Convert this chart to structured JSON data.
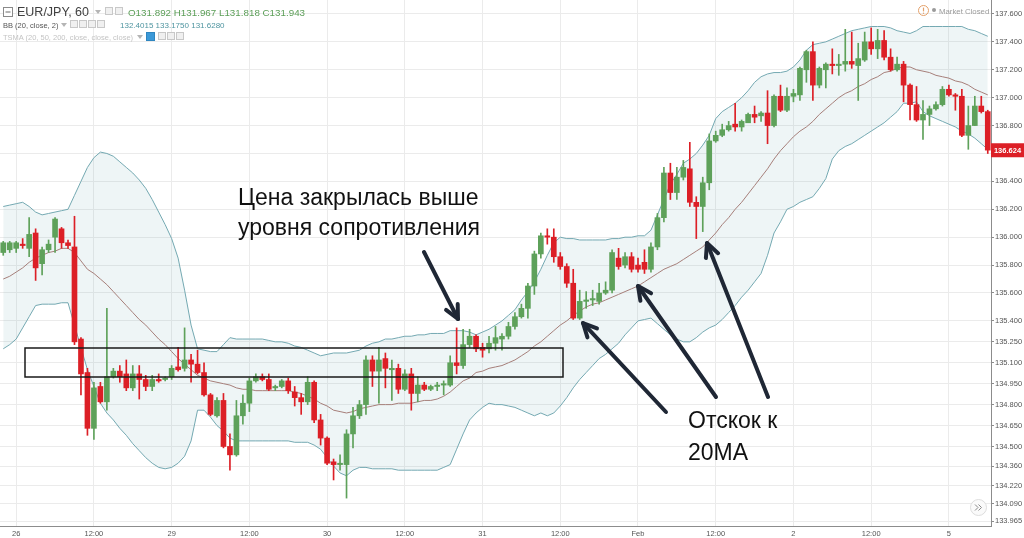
{
  "chart_data": {
    "type": "candlestick",
    "title": "EUR/JPY, 60",
    "categories": [
      null,
      null,
      "26",
      null,
      null,
      null,
      null,
      null,
      null,
      null,
      null,
      null,
      null,
      null,
      "12:00",
      null,
      null,
      null,
      null,
      null,
      null,
      null,
      null,
      null,
      null,
      null,
      "29",
      null,
      null,
      null,
      null,
      null,
      null,
      null,
      null,
      null,
      null,
      null,
      "12:00",
      null,
      null,
      null,
      null,
      null,
      null,
      null,
      null,
      null,
      null,
      null,
      "30",
      null,
      null,
      null,
      null,
      null,
      null,
      null,
      null,
      null,
      null,
      null,
      "12:00",
      null,
      null,
      null,
      null,
      null,
      null,
      null,
      null,
      null,
      null,
      null,
      "31",
      null,
      null,
      null,
      null,
      null,
      null,
      null,
      null,
      null,
      null,
      null,
      "12:00",
      null,
      null,
      null,
      null,
      null,
      null,
      null,
      null,
      null,
      null,
      null,
      "Feb",
      null,
      null,
      null,
      null,
      null,
      null,
      null,
      null,
      null,
      null,
      null,
      "12:00",
      null,
      null,
      null,
      null,
      null,
      null,
      null,
      null,
      null,
      null,
      null,
      "2",
      null,
      null,
      null,
      null,
      null,
      null,
      null,
      null,
      null,
      null,
      null,
      "12:00",
      null,
      null,
      null,
      null,
      null,
      null,
      null,
      null,
      null,
      null,
      null,
      "5",
      null,
      null,
      null,
      null,
      null,
      null
    ],
    "ohlc": [
      [
        135.89,
        135.97,
        135.87,
        135.96
      ],
      [
        135.91,
        135.97,
        135.89,
        135.96
      ],
      [
        135.92,
        135.97,
        135.89,
        135.96
      ],
      [
        135.95,
        135.99,
        135.92,
        135.94
      ],
      [
        135.92,
        136.14,
        135.86,
        136.02
      ],
      [
        136.03,
        136.06,
        135.69,
        135.78
      ],
      [
        135.81,
        135.93,
        135.73,
        135.91
      ],
      [
        135.91,
        135.98,
        135.89,
        135.95
      ],
      [
        136.0,
        136.14,
        135.89,
        136.13
      ],
      [
        136.06,
        136.07,
        135.92,
        135.96
      ],
      [
        135.96,
        135.98,
        135.92,
        135.94
      ],
      [
        135.93,
        136.15,
        135.23,
        135.25
      ],
      [
        135.27,
        135.28,
        134.87,
        135.02
      ],
      [
        135.03,
        135.06,
        134.58,
        134.63
      ],
      [
        134.63,
        134.96,
        134.55,
        134.92
      ],
      [
        134.93,
        134.96,
        134.81,
        134.82
      ],
      [
        134.82,
        135.49,
        134.76,
        135.0
      ],
      [
        135.0,
        135.06,
        134.99,
        135.04
      ],
      [
        135.04,
        135.08,
        134.96,
        135.0
      ],
      [
        135.02,
        135.12,
        134.9,
        134.92
      ],
      [
        134.92,
        135.08,
        134.9,
        135.02
      ],
      [
        135.02,
        135.08,
        134.84,
        134.98
      ],
      [
        134.98,
        135.01,
        134.9,
        134.93
      ],
      [
        134.93,
        135.01,
        134.9,
        134.98
      ],
      [
        134.98,
        135.02,
        134.96,
        134.97
      ],
      [
        134.98,
        135.0,
        134.97,
        134.99
      ],
      [
        135.0,
        135.08,
        134.98,
        135.06
      ],
      [
        135.07,
        135.21,
        135.04,
        135.05
      ],
      [
        135.06,
        135.35,
        135.04,
        135.12
      ],
      [
        135.12,
        135.16,
        134.96,
        135.09
      ],
      [
        135.09,
        135.19,
        135.02,
        135.03
      ],
      [
        135.03,
        135.1,
        134.86,
        134.87
      ],
      [
        134.87,
        134.88,
        134.72,
        134.73
      ],
      [
        134.72,
        134.85,
        134.71,
        134.83
      ],
      [
        134.83,
        134.88,
        134.49,
        134.5
      ],
      [
        134.5,
        134.59,
        134.33,
        134.44
      ],
      [
        134.44,
        134.83,
        134.43,
        134.72
      ],
      [
        134.72,
        134.87,
        134.66,
        134.81
      ],
      [
        134.81,
        134.99,
        134.75,
        134.97
      ],
      [
        134.97,
        135.02,
        134.96,
        135.0
      ],
      [
        135.0,
        135.02,
        134.97,
        134.98
      ],
      [
        134.98,
        135.02,
        134.9,
        134.91
      ],
      [
        134.92,
        134.94,
        134.9,
        134.93
      ],
      [
        134.93,
        134.98,
        134.92,
        134.97
      ],
      [
        134.97,
        134.99,
        134.88,
        134.9
      ],
      [
        134.89,
        134.93,
        134.79,
        134.85
      ],
      [
        134.85,
        134.88,
        134.73,
        134.82
      ],
      [
        134.82,
        135.0,
        134.8,
        134.96
      ],
      [
        134.96,
        134.97,
        134.67,
        134.69
      ],
      [
        134.69,
        134.73,
        134.51,
        134.56
      ],
      [
        134.56,
        134.57,
        134.37,
        134.38
      ],
      [
        134.39,
        134.41,
        134.26,
        134.37
      ],
      [
        134.37,
        134.44,
        134.33,
        134.38
      ],
      [
        134.37,
        134.62,
        134.13,
        134.59
      ],
      [
        134.59,
        134.78,
        134.49,
        134.72
      ],
      [
        134.72,
        134.83,
        134.7,
        134.8
      ],
      [
        134.8,
        135.15,
        134.73,
        135.12
      ],
      [
        135.12,
        135.15,
        134.93,
        135.04
      ],
      [
        135.04,
        135.21,
        134.81,
        135.12
      ],
      [
        135.13,
        135.17,
        134.92,
        135.06
      ],
      [
        135.05,
        135.12,
        134.83,
        135.06
      ],
      [
        135.06,
        135.09,
        134.88,
        134.91
      ],
      [
        134.91,
        135.05,
        134.9,
        135.02
      ],
      [
        135.02,
        135.06,
        134.76,
        134.88
      ],
      [
        134.88,
        135.0,
        134.82,
        134.94
      ],
      [
        134.94,
        134.96,
        134.9,
        134.91
      ],
      [
        134.91,
        134.94,
        134.9,
        134.93
      ],
      [
        134.93,
        134.96,
        134.9,
        134.94
      ],
      [
        134.94,
        134.97,
        134.87,
        134.95
      ],
      [
        134.94,
        135.15,
        134.93,
        135.1
      ],
      [
        135.1,
        135.35,
        135.02,
        135.08
      ],
      [
        135.08,
        135.34,
        135.06,
        135.23
      ],
      [
        135.23,
        135.34,
        135.21,
        135.29
      ],
      [
        135.29,
        135.3,
        135.18,
        135.2
      ],
      [
        135.21,
        135.24,
        135.14,
        135.19
      ],
      [
        135.2,
        135.29,
        135.17,
        135.24
      ],
      [
        135.24,
        135.36,
        135.19,
        135.28
      ],
      [
        135.27,
        135.31,
        135.19,
        135.29
      ],
      [
        135.29,
        135.39,
        135.27,
        135.36
      ],
      [
        135.36,
        135.46,
        135.34,
        135.43
      ],
      [
        135.43,
        135.52,
        135.42,
        135.49
      ],
      [
        135.49,
        135.67,
        135.42,
        135.65
      ],
      [
        135.65,
        135.9,
        135.59,
        135.88
      ],
      [
        135.88,
        136.03,
        135.85,
        136.01
      ],
      [
        136.01,
        136.06,
        135.95,
        136.0
      ],
      [
        136.0,
        136.06,
        135.82,
        135.86
      ],
      [
        135.86,
        135.89,
        135.77,
        135.79
      ],
      [
        135.79,
        135.81,
        135.64,
        135.67
      ],
      [
        135.67,
        135.77,
        135.41,
        135.42
      ],
      [
        135.42,
        135.62,
        135.41,
        135.54
      ],
      [
        135.54,
        135.61,
        135.49,
        135.55
      ],
      [
        135.55,
        135.62,
        135.51,
        135.56
      ],
      [
        135.54,
        135.67,
        135.52,
        135.6
      ],
      [
        135.6,
        135.68,
        135.59,
        135.62
      ],
      [
        135.62,
        135.91,
        135.6,
        135.89
      ],
      [
        135.85,
        135.92,
        135.77,
        135.79
      ],
      [
        135.8,
        135.89,
        135.78,
        135.86
      ],
      [
        135.86,
        135.89,
        135.75,
        135.77
      ],
      [
        135.8,
        135.85,
        135.75,
        135.77
      ],
      [
        135.82,
        135.91,
        135.74,
        135.77
      ],
      [
        135.77,
        135.96,
        135.75,
        135.93
      ],
      [
        135.93,
        136.17,
        135.91,
        136.14
      ],
      [
        136.14,
        136.5,
        136.11,
        136.46
      ],
      [
        136.46,
        136.53,
        136.27,
        136.32
      ],
      [
        136.32,
        136.5,
        136.27,
        136.43
      ],
      [
        136.43,
        136.55,
        136.41,
        136.5
      ],
      [
        136.49,
        136.68,
        136.22,
        136.25
      ],
      [
        136.25,
        136.29,
        135.99,
        136.22
      ],
      [
        136.22,
        136.43,
        136.04,
        136.39
      ],
      [
        136.39,
        136.74,
        136.34,
        136.69
      ],
      [
        136.69,
        136.76,
        136.68,
        136.73
      ],
      [
        136.73,
        136.81,
        136.72,
        136.77
      ],
      [
        136.77,
        136.83,
        136.76,
        136.8
      ],
      [
        136.81,
        136.96,
        136.76,
        136.79
      ],
      [
        136.79,
        136.84,
        136.76,
        136.83
      ],
      [
        136.82,
        136.89,
        136.82,
        136.88
      ],
      [
        136.88,
        136.94,
        136.82,
        136.86
      ],
      [
        136.87,
        136.9,
        136.83,
        136.89
      ],
      [
        136.89,
        137.05,
        136.67,
        136.8
      ],
      [
        136.8,
        137.02,
        136.79,
        137.01
      ],
      [
        137.01,
        137.09,
        136.9,
        136.91
      ],
      [
        136.91,
        137.07,
        136.9,
        137.01
      ],
      [
        137.01,
        137.06,
        136.97,
        137.03
      ],
      [
        137.02,
        137.22,
        136.98,
        137.21
      ],
      [
        137.2,
        137.34,
        137.11,
        137.33
      ],
      [
        137.33,
        137.4,
        136.98,
        137.09
      ],
      [
        137.09,
        137.22,
        137.07,
        137.21
      ],
      [
        137.2,
        137.25,
        137.07,
        137.24
      ],
      [
        137.24,
        137.35,
        137.17,
        137.23
      ],
      [
        137.23,
        137.31,
        137.16,
        137.24
      ],
      [
        137.24,
        137.49,
        137.19,
        137.26
      ],
      [
        137.26,
        137.47,
        137.21,
        137.24
      ],
      [
        137.23,
        137.39,
        136.98,
        137.28
      ],
      [
        137.27,
        137.47,
        137.26,
        137.4
      ],
      [
        137.4,
        137.5,
        137.31,
        137.35
      ],
      [
        137.35,
        137.49,
        137.28,
        137.41
      ],
      [
        137.41,
        137.48,
        137.27,
        137.29
      ],
      [
        137.29,
        137.35,
        137.19,
        137.2
      ],
      [
        137.2,
        137.29,
        137.19,
        137.24
      ],
      [
        137.24,
        137.26,
        136.97,
        137.09
      ],
      [
        137.09,
        137.1,
        136.84,
        136.95
      ],
      [
        136.95,
        137.08,
        136.83,
        136.84
      ],
      [
        136.84,
        136.98,
        136.7,
        136.88
      ],
      [
        136.88,
        136.94,
        136.8,
        136.92
      ],
      [
        136.92,
        136.97,
        136.91,
        136.95
      ],
      [
        136.95,
        137.08,
        136.94,
        137.06
      ],
      [
        137.06,
        137.09,
        137.01,
        137.02
      ],
      [
        137.02,
        137.03,
        136.91,
        137.01
      ],
      [
        137.01,
        137.06,
        136.72,
        136.73
      ],
      [
        136.73,
        136.94,
        136.63,
        136.8
      ],
      [
        136.8,
        137.01,
        136.8,
        136.94
      ],
      [
        136.94,
        137.01,
        136.89,
        136.9
      ],
      [
        136.9,
        136.91,
        136.6,
        136.624
      ]
    ],
    "colors": [
      "#5ea15a",
      "#5ea15a",
      "#5ea15a",
      "#dc1f26",
      "#5ea15a",
      "#dc1f26",
      "#5ea15a",
      "#5ea15a",
      "#5ea15a",
      "#dc1f26",
      "#dc1f26",
      "#dc1f26",
      "#dc1f26",
      "#dc1f26",
      "#5ea15a",
      "#dc1f26",
      "#5ea15a",
      "#5ea15a",
      "#dc1f26",
      "#dc1f26",
      "#5ea15a",
      "#dc1f26",
      "#dc1f26",
      "#5ea15a",
      "#dc1f26",
      "#5ea15a",
      "#5ea15a",
      "#dc1f26",
      "#5ea15a",
      "#dc1f26",
      "#dc1f26",
      "#dc1f26",
      "#dc1f26",
      "#5ea15a",
      "#dc1f26",
      "#dc1f26",
      "#5ea15a",
      "#5ea15a",
      "#5ea15a",
      "#5ea15a",
      "#dc1f26",
      "#dc1f26",
      "#5ea15a",
      "#5ea15a",
      "#dc1f26",
      "#dc1f26",
      "#dc1f26",
      "#5ea15a",
      "#dc1f26",
      "#dc1f26",
      "#dc1f26",
      "#dc1f26",
      "#5ea15a",
      "#5ea15a",
      "#5ea15a",
      "#5ea15a",
      "#5ea15a",
      "#dc1f26",
      "#5ea15a",
      "#dc1f26",
      "#5ea15a",
      "#dc1f26",
      "#5ea15a",
      "#dc1f26",
      "#5ea15a",
      "#dc1f26",
      "#5ea15a",
      "#5ea15a",
      "#5ea15a",
      "#5ea15a",
      "#dc1f26",
      "#5ea15a",
      "#5ea15a",
      "#dc1f26",
      "#dc1f26",
      "#5ea15a",
      "#5ea15a",
      "#5ea15a",
      "#5ea15a",
      "#5ea15a",
      "#5ea15a",
      "#5ea15a",
      "#5ea15a",
      "#5ea15a",
      "#dc1f26",
      "#dc1f26",
      "#dc1f26",
      "#dc1f26",
      "#dc1f26",
      "#5ea15a",
      "#5ea15a",
      "#5ea15a",
      "#5ea15a",
      "#5ea15a",
      "#5ea15a",
      "#dc1f26",
      "#5ea15a",
      "#dc1f26",
      "#dc1f26",
      "#dc1f26",
      "#5ea15a",
      "#5ea15a",
      "#5ea15a",
      "#dc1f26",
      "#5ea15a",
      "#5ea15a",
      "#dc1f26",
      "#dc1f26",
      "#5ea15a",
      "#5ea15a",
      "#5ea15a",
      "#5ea15a",
      "#5ea15a",
      "#dc1f26",
      "#5ea15a",
      "#5ea15a",
      "#dc1f26",
      "#5ea15a",
      "#dc1f26",
      "#5ea15a",
      "#dc1f26",
      "#5ea15a",
      "#5ea15a",
      "#5ea15a",
      "#5ea15a",
      "#dc1f26",
      "#5ea15a",
      "#5ea15a",
      "#dc1f26",
      "#5ea15a",
      "#5ea15a",
      "#dc1f26",
      "#5ea15a",
      "#5ea15a",
      "#dc1f26",
      "#5ea15a",
      "#dc1f26",
      "#dc1f26",
      "#5ea15a",
      "#dc1f26",
      "#dc1f26",
      "#dc1f26",
      "#5ea15a",
      "#5ea15a",
      "#5ea15a",
      "#5ea15a",
      "#dc1f26",
      "#dc1f26",
      "#dc1f26",
      "#5ea15a",
      "#5ea15a",
      "#dc1f26",
      "#dc1f26"
    ],
    "series": [
      {
        "type": "line",
        "color": "#74a9b2",
        "values": [
          136.22,
          136.23,
          136.24,
          136.25,
          136.22,
          136.18,
          136.16,
          136.17,
          136.18,
          136.19,
          136.2,
          136.3,
          136.4,
          136.5,
          136.57,
          136.61,
          136.6,
          136.58,
          136.54,
          136.5,
          136.46,
          136.41,
          136.35,
          136.27,
          136.18,
          136.09,
          135.99,
          135.85,
          135.62,
          135.37,
          135.2,
          135.19,
          135.18,
          135.18,
          135.23,
          135.28,
          135.27,
          135.27,
          135.27,
          135.27,
          135.27,
          135.26,
          135.25,
          135.25,
          135.24,
          135.22,
          135.21,
          135.19,
          135.17,
          135.15,
          135.16,
          135.17,
          135.17,
          135.17,
          135.18,
          135.19,
          135.22,
          135.24,
          135.25,
          135.27,
          135.27,
          135.28,
          135.29,
          135.29,
          135.3,
          135.3,
          135.31,
          135.31,
          135.31,
          135.33,
          135.33,
          135.33,
          135.32,
          135.3,
          135.32,
          135.34,
          135.37,
          135.4,
          135.44,
          135.48,
          135.55,
          135.61,
          135.68,
          135.77,
          135.87,
          135.96,
          136.0,
          135.99,
          135.99,
          135.98,
          135.98,
          135.98,
          135.98,
          135.98,
          135.99,
          135.99,
          136.0,
          136.0,
          136.01,
          136.01,
          136.05,
          136.16,
          null,
          136.38,
          136.45,
          136.53,
          136.56,
          136.6,
          136.66,
          136.73,
          136.85,
          136.9,
          136.93,
          136.96,
          137.0,
          137.05,
          137.11,
          137.15,
          137.17,
          137.18,
          137.18,
          137.19,
          137.22,
          137.27,
          137.34,
          137.38,
          137.39,
          137.4,
          137.42,
          137.44,
          137.46,
          137.48,
          137.49,
          137.5,
          137.51,
          137.51,
          137.51,
          137.5,
          137.48,
          137.47,
          137.46,
          137.48,
          137.51,
          137.51,
          137.51,
          137.51,
          137.51,
          137.51,
          137.51,
          137.49,
          137.48,
          137.46,
          137.44
        ]
      },
      {
        "type": "line",
        "color": "#a67f7a",
        "values": [
          135.7,
          135.72,
          135.75,
          135.78,
          135.82,
          135.85,
          135.87,
          135.89,
          135.9,
          135.92,
          135.92,
          135.89,
          135.83,
          135.77,
          135.74,
          135.7,
          135.66,
          135.61,
          135.56,
          135.51,
          135.46,
          135.41,
          135.37,
          135.32,
          135.27,
          135.23,
          135.18,
          135.13,
          135.09,
          135.05,
          135.01,
          134.99,
          134.97,
          134.96,
          134.95,
          134.94,
          134.92,
          134.91,
          134.91,
          134.9,
          134.9,
          134.9,
          134.9,
          134.9,
          134.9,
          134.89,
          134.88,
          134.86,
          134.84,
          134.81,
          134.79,
          134.76,
          134.75,
          134.74,
          134.75,
          134.77,
          134.78,
          134.79,
          134.8,
          134.8,
          134.8,
          134.81,
          134.81,
          134.81,
          134.82,
          134.83,
          134.83,
          134.84,
          134.86,
          134.89,
          134.93,
          134.97,
          134.99,
          135.03,
          135.04,
          135.06,
          135.07,
          135.08,
          135.1,
          135.12,
          135.15,
          135.18,
          135.22,
          135.25,
          135.29,
          135.33,
          135.37,
          135.4,
          135.44,
          135.47,
          135.5,
          135.52,
          135.53,
          135.55,
          135.57,
          135.59,
          135.61,
          135.63,
          135.65,
          135.68,
          135.71,
          135.74,
          135.77,
          135.79,
          135.81,
          135.84,
          135.87,
          135.9,
          135.93,
          135.98,
          136.03,
          136.09,
          136.14,
          136.2,
          136.25,
          136.31,
          136.37,
          136.43,
          136.49,
          136.56,
          136.62,
          136.67,
          136.72,
          136.76,
          136.79,
          136.83,
          136.88,
          136.92,
          136.96,
          137.0,
          137.03,
          137.05,
          137.08,
          137.1,
          137.13,
          137.15,
          137.18,
          137.19,
          137.21,
          137.22,
          137.22,
          137.2,
          137.19,
          137.18,
          137.16,
          137.15,
          137.14,
          137.12,
          137.11,
          137.09,
          137.06,
          137.04,
          137.02
        ],
        "upper": [
          136.22,
          136.23,
          136.24,
          136.25,
          136.22,
          136.18,
          136.16,
          136.17,
          136.18,
          136.19,
          136.2,
          136.3,
          136.4,
          136.5,
          136.57,
          136.61,
          136.6,
          136.58,
          136.54,
          136.5,
          136.46,
          136.41,
          136.35,
          136.27,
          136.18,
          136.09,
          135.99,
          135.85,
          135.62,
          135.37,
          135.2,
          135.19,
          135.18,
          135.18,
          135.23,
          135.28,
          135.27,
          135.27,
          135.27,
          135.27,
          135.27,
          135.26,
          135.25,
          135.25,
          135.24,
          135.22,
          135.21,
          135.19,
          135.17,
          135.15,
          135.16,
          135.17,
          135.17,
          135.17,
          135.18,
          135.19,
          135.22,
          135.24,
          135.25,
          135.27,
          135.27,
          135.28,
          135.29,
          135.29,
          135.3,
          135.3,
          135.31,
          135.31,
          135.31,
          135.33,
          135.33,
          135.33,
          135.32,
          135.3,
          135.32,
          135.34,
          135.37,
          135.4,
          135.44,
          135.48,
          135.55,
          135.61,
          135.68,
          135.77,
          135.87,
          135.96,
          136.0,
          135.99,
          135.99,
          135.98,
          135.98,
          135.98,
          135.98,
          135.98,
          135.99,
          135.99,
          136.0,
          136.0,
          136.01,
          136.01,
          136.05,
          136.16,
          136.31,
          136.38,
          136.45,
          136.53,
          136.56,
          136.6,
          136.66,
          136.73,
          136.85,
          136.9,
          136.93,
          136.96,
          137.0,
          137.05,
          137.11,
          137.15,
          137.17,
          137.18,
          137.18,
          137.19,
          137.22,
          137.27,
          137.34,
          137.38,
          137.39,
          137.4,
          137.42,
          137.44,
          137.46,
          137.48,
          137.49,
          137.5,
          137.51,
          137.51,
          137.51,
          137.5,
          137.48,
          137.47,
          137.46,
          137.48,
          137.51,
          137.51,
          137.51,
          137.51,
          137.51,
          137.51,
          137.51,
          137.49,
          137.48,
          137.46,
          137.44
        ],
        "lower": [
          135.2,
          135.23,
          135.27,
          135.35,
          135.43,
          135.51,
          135.52,
          135.52,
          135.52,
          135.53,
          135.53,
          135.42,
          135.24,
          135.05,
          134.88,
          134.81,
          134.74,
          134.69,
          134.63,
          134.58,
          134.52,
          134.47,
          134.42,
          134.38,
          134.35,
          134.34,
          134.35,
          134.38,
          134.43,
          134.54,
          134.76,
          134.76,
          134.71,
          134.65,
          134.61,
          134.56,
          134.54,
          134.54,
          134.54,
          134.54,
          134.54,
          134.54,
          134.54,
          134.54,
          134.54,
          134.53,
          134.53,
          134.53,
          134.51,
          134.48,
          134.42,
          134.36,
          134.31,
          134.29,
          134.33,
          134.35,
          134.35,
          134.34,
          134.34,
          134.34,
          134.34,
          134.33,
          134.33,
          134.33,
          134.33,
          134.33,
          134.33,
          134.33,
          134.35,
          134.37,
          134.48,
          134.59,
          134.69,
          134.74,
          134.78,
          134.81,
          134.8,
          134.8,
          134.79,
          134.78,
          134.76,
          134.74,
          134.72,
          134.74,
          134.72,
          134.74,
          134.79,
          134.85,
          134.92,
          134.98,
          135.03,
          135.08,
          135.13,
          135.16,
          135.2,
          135.24,
          135.3,
          135.35,
          135.4,
          135.41,
          135.42,
          135.38,
          135.34,
          135.3,
          135.27,
          135.25,
          135.25,
          135.28,
          135.32,
          135.35,
          135.37,
          135.41,
          135.46,
          135.51,
          135.57,
          135.62,
          135.68,
          135.74,
          135.87,
          136.03,
          136.11,
          136.2,
          136.22,
          136.25,
          136.27,
          136.29,
          136.35,
          136.42,
          136.56,
          136.62,
          136.65,
          136.67,
          136.7,
          136.73,
          136.76,
          136.79,
          136.82,
          136.86,
          136.9,
          136.96,
          136.96,
          136.97,
          136.9,
          136.87,
          136.85,
          136.83,
          136.81,
          136.79,
          136.76,
          136.74,
          136.71,
          136.67,
          136.63
        ]
      },
      {
        "type": "line",
        "color": "#74a9b2",
        "values": [
          135.2,
          135.23,
          135.27,
          135.35,
          135.43,
          135.51,
          135.52,
          135.52,
          135.52,
          135.53,
          135.53,
          null,
          null,
          135.05,
          null,
          134.81,
          134.74,
          134.69,
          134.63,
          134.58,
          134.52,
          134.47,
          134.42,
          134.38,
          134.35,
          134.34,
          134.35,
          134.38,
          134.43,
          134.54,
          134.76,
          134.76,
          134.71,
          134.65,
          134.61,
          134.56,
          134.54,
          134.54,
          134.54,
          134.54,
          134.54,
          134.54,
          134.54,
          134.54,
          134.54,
          134.53,
          134.53,
          134.53,
          134.51,
          134.48,
          134.42,
          134.36,
          134.31,
          134.29,
          134.33,
          134.35,
          134.35,
          134.34,
          134.34,
          134.34,
          134.34,
          134.33,
          134.33,
          134.33,
          134.33,
          134.33,
          134.33,
          134.33,
          134.35,
          134.37,
          134.48,
          134.59,
          134.69,
          134.74,
          134.78,
          134.81,
          134.8,
          134.8,
          134.79,
          134.78,
          134.76,
          134.74,
          134.72,
          134.74,
          134.72,
          134.74,
          134.79,
          134.85,
          134.92,
          134.98,
          135.03,
          135.08,
          135.13,
          135.16,
          135.2,
          135.24,
          135.3,
          135.35,
          135.4,
          135.41,
          135.42,
          135.38,
          135.34,
          135.3,
          135.27,
          135.25,
          135.25,
          135.28,
          135.32,
          135.35,
          135.37,
          135.41,
          135.46,
          135.51,
          135.57,
          135.62,
          135.68,
          135.74,
          135.87,
          136.03,
          136.11,
          136.2,
          136.22,
          136.25,
          136.27,
          136.29,
          136.35,
          136.42,
          136.56,
          136.62,
          136.65,
          136.67,
          136.7,
          136.73,
          136.76,
          136.79,
          136.82,
          136.86,
          136.9,
          136.96,
          136.96,
          136.97,
          136.9,
          136.87,
          136.85,
          136.83,
          136.81,
          136.79,
          136.76,
          136.74,
          136.71,
          136.67,
          136.63
        ]
      }
    ],
    "ylim": [
      133.93,
      137.7
    ],
    "yticks": [
      {
        "value": 137.6,
        "label": "137.600"
      },
      {
        "value": 137.4,
        "label": "137.400"
      },
      {
        "value": 137.2,
        "label": "137.200"
      },
      {
        "value": 137.0,
        "label": "137.000"
      },
      {
        "value": 136.8,
        "label": "136.800"
      },
      {
        "value": 136.6,
        "label": null
      },
      {
        "value": 136.4,
        "label": "136.400"
      },
      {
        "value": 136.2,
        "label": "136.200"
      },
      {
        "value": 136.0,
        "label": "136.000"
      },
      {
        "value": 135.8,
        "label": "135.800"
      },
      {
        "value": 135.6,
        "label": "135.600"
      },
      {
        "value": 135.4,
        "label": "135.400"
      },
      {
        "value": 135.25,
        "label": "135.250"
      },
      {
        "value": 135.1,
        "label": "135.100"
      },
      {
        "value": 134.95,
        "label": "134.950"
      },
      {
        "value": 134.8,
        "label": "134.800"
      },
      {
        "value": 134.65,
        "label": "134.650"
      },
      {
        "value": 134.5,
        "label": "134.500"
      },
      {
        "value": 134.36,
        "label": "134.360"
      },
      {
        "value": 134.22,
        "label": "134.220"
      },
      {
        "value": 134.09,
        "label": "134.090"
      },
      {
        "value": 133.965,
        "label": "133.965"
      }
    ],
    "grid": true,
    "annotations": [
      "O131.892 H131.967 L131.818 C131.943",
      "BB (20, close, 2)",
      "132.4015 133.1750 131.6280",
      "TSMA (20, 50, 200, close, close, close)",
      "Market Closed",
      "Цена закрылась выше\nуровня сопротивления",
      {
        "text": "Отскок к\n20MA",
        "x": "Feb",
        "y": 135.65
      },
      {
        "text": "136.624",
        "y": 136.624
      }
    ]
  }
}
